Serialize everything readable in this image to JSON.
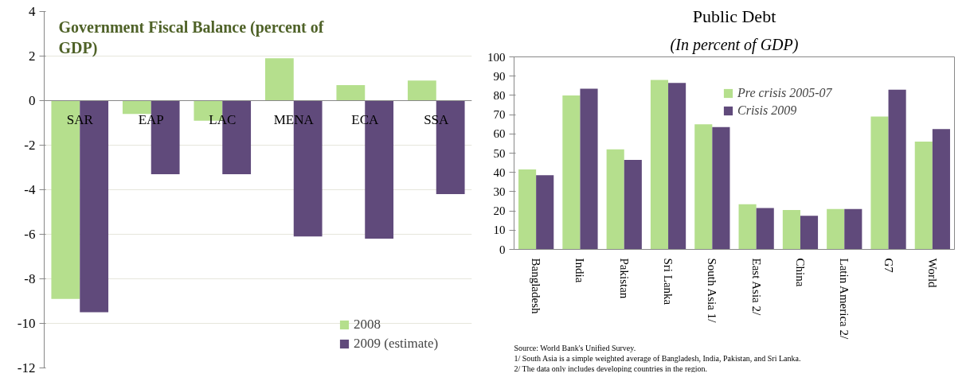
{
  "chart_data": [
    {
      "type": "bar",
      "title": "Government Fiscal Balance (percent of GDP)",
      "categories": [
        "SAR",
        "EAP",
        "LAC",
        "MENA",
        "ECA",
        "SSA"
      ],
      "series": [
        {
          "name": "2008",
          "color": "#b5df8d",
          "values": [
            -8.9,
            -0.6,
            -0.9,
            1.9,
            0.7,
            0.9
          ]
        },
        {
          "name": "2009 (estimate)",
          "color": "#604a7b",
          "values": [
            -9.5,
            -3.3,
            -3.3,
            -6.1,
            -6.2,
            -4.2
          ]
        }
      ],
      "ylim": [
        -12,
        4
      ],
      "yticks": [
        -12,
        -10,
        -8,
        -6,
        -4,
        -2,
        0,
        2,
        4
      ],
      "grid": "y",
      "legend": "bottom right"
    },
    {
      "type": "bar",
      "title": "Public Debt",
      "subtitle": "(In percent of GDP)",
      "categories": [
        "Bangladesh",
        "India",
        "Pakistan",
        "Sri Lanka",
        "South Asia 1/",
        "East Asia 2/",
        "China",
        "Latin America 2/",
        "G7",
        "World"
      ],
      "series": [
        {
          "name": "Pre crisis 2005-07",
          "color": "#b5df8d",
          "values": [
            41.5,
            80,
            52,
            88,
            65,
            23.5,
            20.5,
            21,
            69,
            56
          ]
        },
        {
          "name": "Crisis 2009",
          "color": "#604a7b",
          "values": [
            38.5,
            83.5,
            46.5,
            86.5,
            63.5,
            21.5,
            17.5,
            21,
            83,
            62.5
          ]
        }
      ],
      "ylim": [
        0,
        100
      ],
      "yticks": [
        0,
        10,
        20,
        30,
        40,
        50,
        60,
        70,
        80,
        90,
        100
      ],
      "grid": false,
      "legend": "top",
      "annotations": [
        "Source: World Bank's Unified Survey.",
        "1/ South Asia is a simple weighted average of Bangladesh, India, Pakistan, and Sri Lanka.",
        "2/ The data only includes developing countries in the region."
      ]
    }
  ]
}
